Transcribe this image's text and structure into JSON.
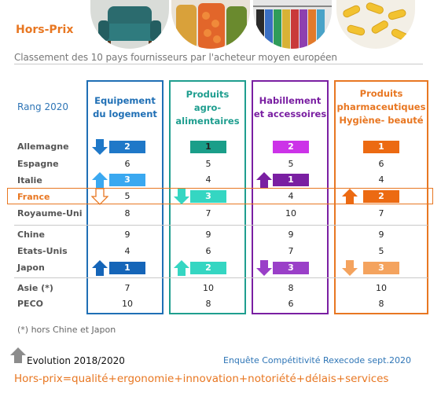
{
  "title": "Hors-Prix",
  "subtitle": "Classement des 10 pays fournisseurs par l'acheteur moyen européen",
  "rank_label": "Rang 2020",
  "colors": {
    "orange": "#e87722",
    "blue": "#2e75b6",
    "teal": "#1f9e8f",
    "purple": "#7030a0",
    "grey_arrow": "#8c8c8c"
  },
  "columns": [
    {
      "label": "Equipement du logement",
      "color": "#1f6fb5"
    },
    {
      "label": "Produits agro-alimentaires",
      "color": "#1f9e8f"
    },
    {
      "label": "Habillement et accessoires",
      "color": "#7a1fa2"
    },
    {
      "label": "Produits pharmaceutiques Hygiène- beauté",
      "color": "#e87722"
    }
  ],
  "rows": [
    {
      "country": "Allemagne",
      "ranks": [
        "2",
        "1",
        "2",
        "1"
      ]
    },
    {
      "country": "Espagne",
      "ranks": [
        "6",
        "5",
        "5",
        "6"
      ]
    },
    {
      "country": "Italie",
      "ranks": [
        "3",
        "4",
        "1",
        "4"
      ]
    },
    {
      "country": "France",
      "ranks": [
        "5",
        "3",
        "4",
        "2"
      ]
    },
    {
      "country": "Royaume-Uni",
      "ranks": [
        "8",
        "7",
        "10",
        "7"
      ]
    },
    {
      "country": "Chine",
      "ranks": [
        "9",
        "9",
        "9",
        "9"
      ]
    },
    {
      "country": "Etats-Unis",
      "ranks": [
        "4",
        "6",
        "7",
        "5"
      ]
    },
    {
      "country": "Japon",
      "ranks": [
        "1",
        "2",
        "3",
        "3"
      ]
    },
    {
      "country": "Asie (*)",
      "ranks": [
        "7",
        "10",
        "8",
        "10"
      ]
    },
    {
      "country": "PECO",
      "ranks": [
        "10",
        "8",
        "6",
        "8"
      ]
    }
  ],
  "footnote": "(*) hors Chine et Japon",
  "legend_label": "Evolution 2018/2020",
  "source": "Enquête Compétitivité Rexecode sept.2020",
  "bottom_line": "Hors-prix=qualité+ergonomie+innovation+notoriété+délais+services",
  "photos": [
    "armchair-photo",
    "vegetable-jars-photo",
    "clothes-rack-photo",
    "pills-photo"
  ]
}
